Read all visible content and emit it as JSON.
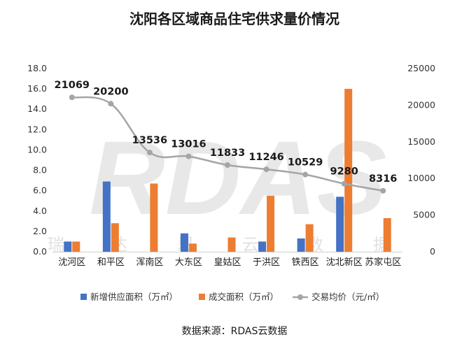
{
  "chart_data": {
    "type": "bar",
    "title": "沈阳各区域商品住宅供求量价情况",
    "categories": [
      "沈河区",
      "和平区",
      "浑南区",
      "大东区",
      "皇姑区",
      "于洪区",
      "铁西区",
      "沈北新区",
      "苏家屯区"
    ],
    "y_left": {
      "ylim": [
        0,
        18
      ],
      "ticks": [
        "0.0",
        "2.0",
        "4.0",
        "6.0",
        "8.0",
        "10.0",
        "12.0",
        "14.0",
        "16.0",
        "18.0"
      ]
    },
    "y_right": {
      "ylim": [
        0,
        25000
      ],
      "ticks": [
        "0",
        "5000",
        "10000",
        "15000",
        "20000",
        "25000"
      ]
    },
    "series": [
      {
        "name": "新增供应面积（万㎡）",
        "type": "bar",
        "axis": "left",
        "color": "#4472C4",
        "values": [
          1.0,
          6.9,
          0,
          1.8,
          0,
          1.0,
          1.3,
          5.4,
          0
        ]
      },
      {
        "name": "成交面积（万㎡）",
        "type": "bar",
        "axis": "left",
        "color": "#ED7D31",
        "values": [
          1.0,
          2.8,
          6.7,
          0.8,
          1.4,
          5.5,
          2.7,
          16.0,
          3.3
        ]
      },
      {
        "name": "交易均价（元/㎡）",
        "type": "line",
        "axis": "right",
        "color": "#A5A5A5",
        "values": [
          21069,
          20200,
          13536,
          13016,
          11833,
          11246,
          10529,
          9280,
          8316
        ],
        "labels": [
          "21069",
          "20200",
          "13536",
          "13016",
          "11833",
          "11246",
          "10529",
          "9280",
          "8316"
        ]
      }
    ],
    "legend": "bottom",
    "grid": false
  },
  "watermark": {
    "logo": "RDAS",
    "chars": [
      "瑞",
      "达",
      "恩",
      "云",
      "数",
      "据"
    ]
  },
  "source": "数据来源：RDAS云数据"
}
